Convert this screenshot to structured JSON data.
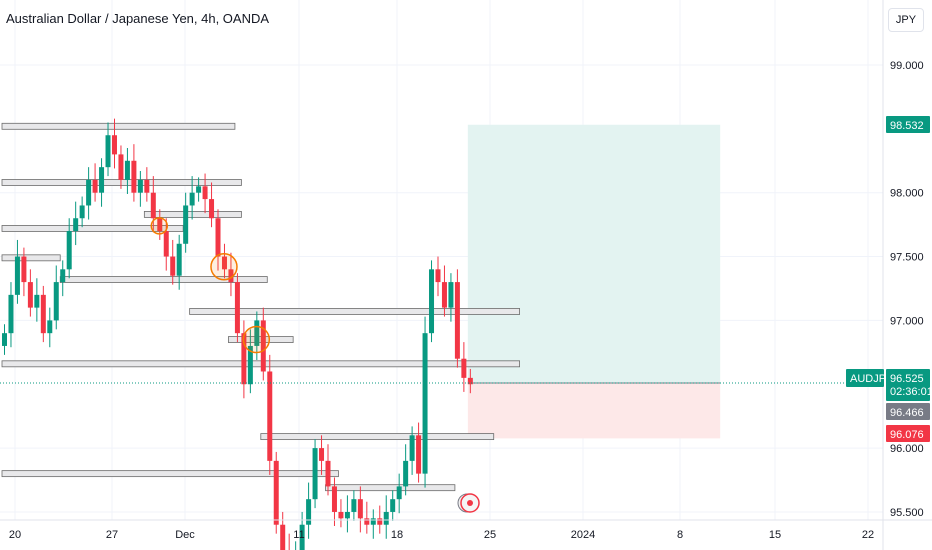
{
  "header": {
    "title": "Australian Dollar / Japanese Yen, 4h, OANDA",
    "currency": "JPY"
  },
  "colors": {
    "up": "#089981",
    "down": "#f23645",
    "level_fill": "#e8e8ea",
    "level_stroke": "#6b6b6b",
    "circle": "#f57c00",
    "target_zone": "#e3f3f1",
    "stop_zone": "#fde8e8"
  },
  "chart_data": {
    "type": "candlestick",
    "symbol": "AUDJPY",
    "ylim": [
      95.4,
      99.35
    ],
    "y_ticks": [
      "99.000",
      "98.000",
      "97.500",
      "97.000",
      "96.000",
      "95.500"
    ],
    "y_tick_values": [
      99.0,
      98.0,
      97.5,
      97.0,
      96.0,
      95.5
    ],
    "x_ticks": [
      "20",
      "27",
      "Dec",
      "11",
      "18",
      "25",
      "2024",
      "8",
      "15",
      "22"
    ],
    "grid": true,
    "closes": [
      96.9,
      97.2,
      97.5,
      97.3,
      97.1,
      97.2,
      96.9,
      97.0,
      97.3,
      97.4,
      97.7,
      97.8,
      97.9,
      98.1,
      98.0,
      98.2,
      98.45,
      98.3,
      98.1,
      98.25,
      98.0,
      98.1,
      98.0,
      97.8,
      97.7,
      97.5,
      97.35,
      97.6,
      97.9,
      98.0,
      98.05,
      97.95,
      97.8,
      97.5,
      97.4,
      97.3,
      96.9,
      96.5,
      96.8,
      97.0,
      96.6,
      95.9,
      95.4,
      95.2,
      95.1,
      95.2,
      95.4,
      95.6,
      96.0,
      95.9,
      95.7,
      95.5,
      95.45,
      95.5,
      95.6,
      95.45,
      95.4,
      95.45,
      95.4,
      95.5,
      95.6,
      95.7,
      95.9,
      96.1,
      95.8,
      96.9,
      97.4,
      97.3,
      97.1,
      97.3,
      96.7,
      96.55,
      96.5
    ],
    "levels": [
      {
        "price": 98.52,
        "from": 0,
        "to": 36
      },
      {
        "price": 98.08,
        "from": 0,
        "to": 37
      },
      {
        "price": 97.83,
        "from": 22,
        "to": 37
      },
      {
        "price": 97.72,
        "from": 0,
        "to": 28
      },
      {
        "price": 97.49,
        "from": 0,
        "to": 9
      },
      {
        "price": 97.32,
        "from": 9,
        "to": 41
      },
      {
        "price": 97.07,
        "from": 29,
        "to": 80
      },
      {
        "price": 96.85,
        "from": 35,
        "to": 45
      },
      {
        "price": 96.66,
        "from": 0,
        "to": 80
      },
      {
        "price": 96.09,
        "from": 40,
        "to": 76
      },
      {
        "price": 95.8,
        "from": 0,
        "to": 52
      },
      {
        "price": 95.69,
        "from": 50,
        "to": 70
      }
    ],
    "circles": [
      {
        "index": 24,
        "price": 97.74
      },
      {
        "index": 34,
        "price": 97.42
      },
      {
        "index": 39,
        "price": 96.85
      }
    ],
    "position": {
      "entry": 96.51,
      "target": 98.532,
      "stop": 96.076,
      "from": 72,
      "to": 111
    },
    "labels": {
      "symbol": "AUDJPY",
      "last_price": "96.525",
      "countdown": "02:36:01",
      "price_2": "96.466",
      "target": "98.532",
      "stop": "96.076"
    }
  }
}
